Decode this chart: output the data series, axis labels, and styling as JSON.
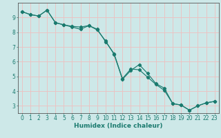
{
  "title": "",
  "xlabel": "Humidex (Indice chaleur)",
  "ylabel": "",
  "xlim": [
    -0.5,
    23.5
  ],
  "ylim": [
    2.5,
    10.0
  ],
  "yticks": [
    3,
    4,
    5,
    6,
    7,
    8,
    9
  ],
  "xticks": [
    0,
    1,
    2,
    3,
    4,
    5,
    6,
    7,
    8,
    9,
    10,
    11,
    12,
    13,
    14,
    15,
    16,
    17,
    18,
    19,
    20,
    21,
    22,
    23
  ],
  "line1_x": [
    0,
    1,
    2,
    3,
    4,
    5,
    6,
    7,
    8,
    9,
    10,
    11,
    12,
    13,
    14,
    15,
    16,
    17,
    18,
    19,
    20,
    21,
    22,
    23
  ],
  "line1_y": [
    9.4,
    9.2,
    9.1,
    9.5,
    8.65,
    8.5,
    8.4,
    8.35,
    8.45,
    8.15,
    7.4,
    6.5,
    4.8,
    5.4,
    5.8,
    5.2,
    4.5,
    4.2,
    3.15,
    3.05,
    2.7,
    3.0,
    3.2,
    3.3
  ],
  "line2_x": [
    0,
    1,
    2,
    3,
    4,
    5,
    6,
    7,
    8,
    9,
    10,
    11,
    12,
    13,
    14,
    15,
    16,
    17,
    18,
    19,
    20,
    21,
    22,
    23
  ],
  "line2_y": [
    9.4,
    9.2,
    9.1,
    9.5,
    8.65,
    8.5,
    8.35,
    8.2,
    8.45,
    8.2,
    7.35,
    6.55,
    4.85,
    5.5,
    5.45,
    4.95,
    4.45,
    4.05,
    3.15,
    3.05,
    2.7,
    3.0,
    3.2,
    3.3
  ],
  "line_color": "#1a7a6e",
  "bg_color": "#cde8e8",
  "grid_major_color": "#f0c0c0",
  "grid_minor_color": "#b8dcdc",
  "axis_color": "#555555",
  "xlabel_fontsize": 6.5,
  "tick_fontsize": 5.5
}
